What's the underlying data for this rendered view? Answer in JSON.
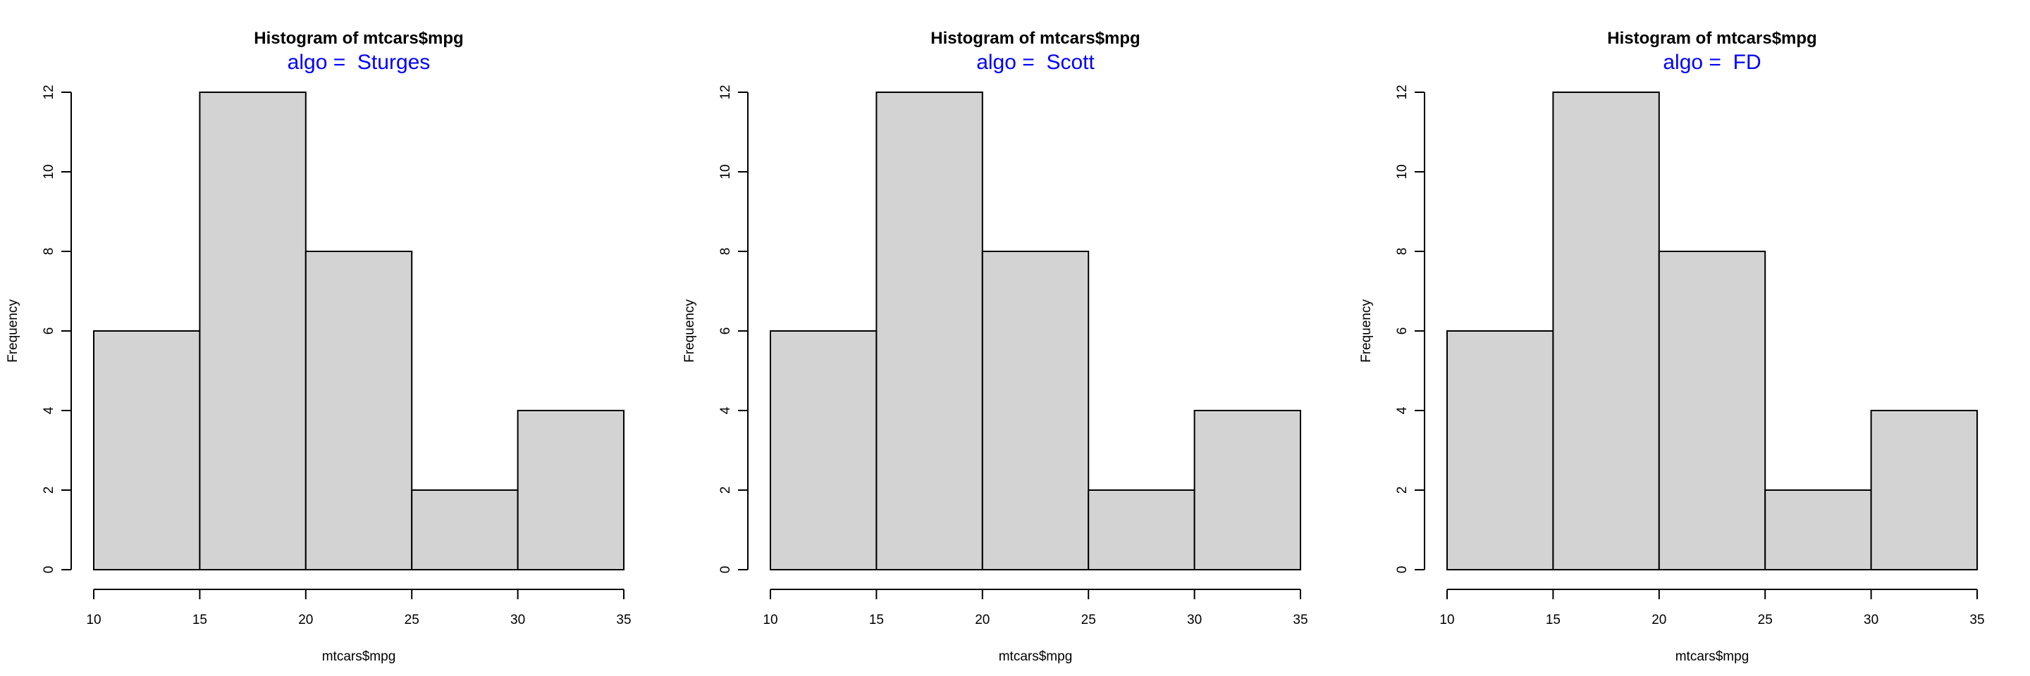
{
  "chart_data": [
    {
      "type": "bar",
      "title": "Histogram of mtcars$mpg",
      "subtitle_prefix": "algo = ",
      "subtitle_value": "Sturges",
      "subtitle_color": "#0000ff",
      "xlabel": "mtcars$mpg",
      "ylabel": "Frequency",
      "bin_edges": [
        10,
        15,
        20,
        25,
        30,
        35
      ],
      "values": [
        6,
        12,
        8,
        2,
        4
      ],
      "xticks": [
        10,
        15,
        20,
        25,
        30,
        35
      ],
      "yticks": [
        0,
        2,
        4,
        6,
        8,
        10,
        12
      ],
      "xlim": [
        10,
        35
      ],
      "ylim": [
        0,
        12
      ],
      "bar_color": "#d3d3d3",
      "grid": false
    },
    {
      "type": "bar",
      "title": "Histogram of mtcars$mpg",
      "subtitle_prefix": "algo = ",
      "subtitle_value": "Scott",
      "subtitle_color": "#0000ff",
      "xlabel": "mtcars$mpg",
      "ylabel": "Frequency",
      "bin_edges": [
        10,
        15,
        20,
        25,
        30,
        35
      ],
      "values": [
        6,
        12,
        8,
        2,
        4
      ],
      "xticks": [
        10,
        15,
        20,
        25,
        30,
        35
      ],
      "yticks": [
        0,
        2,
        4,
        6,
        8,
        10,
        12
      ],
      "xlim": [
        10,
        35
      ],
      "ylim": [
        0,
        12
      ],
      "bar_color": "#d3d3d3",
      "grid": false
    },
    {
      "type": "bar",
      "title": "Histogram of mtcars$mpg",
      "subtitle_prefix": "algo = ",
      "subtitle_value": "FD",
      "subtitle_color": "#0000ff",
      "xlabel": "mtcars$mpg",
      "ylabel": "Frequency",
      "bin_edges": [
        10,
        15,
        20,
        25,
        30,
        35
      ],
      "values": [
        6,
        12,
        8,
        2,
        4
      ],
      "xticks": [
        10,
        15,
        20,
        25,
        30,
        35
      ],
      "yticks": [
        0,
        2,
        4,
        6,
        8,
        10,
        12
      ],
      "xlim": [
        10,
        35
      ],
      "ylim": [
        0,
        12
      ],
      "bar_color": "#d3d3d3",
      "grid": false
    }
  ]
}
